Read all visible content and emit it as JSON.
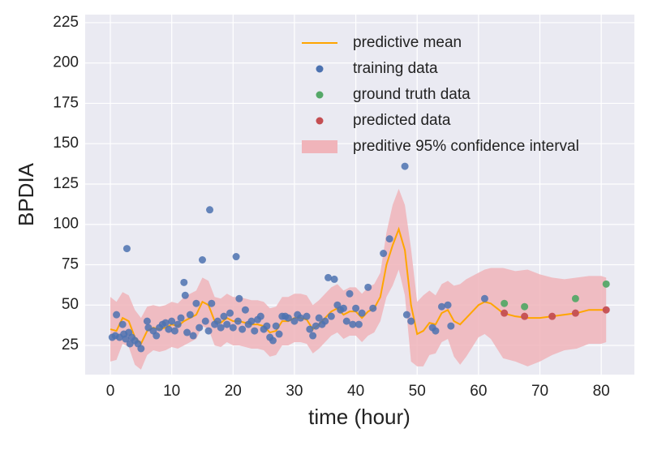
{
  "chart_data": {
    "type": "gp-forecast",
    "xlabel": "time (hour)",
    "ylabel": "BPDIA",
    "xlim": [
      -4.1,
      85.4
    ],
    "ylim": [
      6.9,
      230
    ],
    "xticks": [
      0,
      10,
      20,
      30,
      40,
      50,
      60,
      70,
      80
    ],
    "yticks": [
      25,
      50,
      75,
      100,
      125,
      150,
      175,
      200,
      225
    ],
    "grid": true,
    "legend": "upper center",
    "series": [
      {
        "name": "predictive mean",
        "kind": "line",
        "color": "#ffa500",
        "x": [
          0,
          1,
          2,
          3,
          4,
          5,
          6,
          7,
          8,
          9,
          10,
          11,
          12,
          13,
          14,
          15,
          16,
          17,
          18,
          19,
          20,
          21,
          22,
          23,
          24,
          25,
          26,
          27,
          28,
          29,
          30,
          31,
          32,
          33,
          34,
          35,
          36,
          37,
          38,
          39,
          40,
          41,
          42,
          43,
          44,
          45,
          46,
          47,
          48,
          49,
          50,
          51,
          52,
          53,
          54,
          55,
          56,
          57,
          58,
          59,
          60,
          61,
          62,
          63,
          64,
          66,
          68,
          70,
          72,
          74,
          76,
          78,
          80,
          80.8
        ],
        "values": [
          35,
          34,
          42,
          40,
          30,
          26,
          34,
          36,
          35,
          36,
          38,
          37,
          40,
          42,
          44,
          52,
          50,
          40,
          39,
          42,
          40,
          40,
          39,
          38,
          38,
          37,
          33,
          34,
          40,
          40,
          42,
          42,
          41,
          35,
          38,
          42,
          46,
          48,
          44,
          46,
          46,
          42,
          46,
          48,
          55,
          75,
          87,
          97,
          84,
          50,
          32,
          34,
          39,
          38,
          45,
          47,
          40,
          38,
          42,
          46,
          50,
          52,
          51,
          48,
          45,
          43,
          42,
          42,
          43,
          44,
          45,
          47,
          47,
          47
        ]
      },
      {
        "name": "training data",
        "kind": "scatter",
        "color": "#4c72b0",
        "x": [
          0.3,
          0.8,
          1,
          1.5,
          2,
          2.2,
          2.5,
          2.7,
          3,
          3.2,
          3.5,
          4,
          4.5,
          5,
          6,
          6.2,
          7,
          7.5,
          8,
          8.5,
          9,
          9.5,
          10,
          10.5,
          11,
          11.5,
          12,
          12.2,
          12.5,
          13,
          13.5,
          14,
          14.5,
          15,
          15.5,
          16,
          16.2,
          16.5,
          17,
          17.5,
          18,
          18.5,
          19,
          19.5,
          20,
          20.5,
          20.8,
          21,
          21.5,
          22,
          22.5,
          23,
          23.5,
          24,
          24.5,
          25,
          25.5,
          26,
          26.5,
          27,
          27.5,
          28,
          28.5,
          29,
          30,
          30.5,
          31,
          32,
          32.5,
          33,
          33.5,
          34,
          34.5,
          35,
          35.5,
          36,
          36.5,
          37,
          37.5,
          38,
          38.5,
          39,
          39.5,
          40,
          40.5,
          41,
          42,
          42.8,
          44.5,
          45.5,
          48,
          48.3,
          49,
          52.5,
          53,
          54,
          55,
          55.5,
          61
        ],
        "values": [
          30,
          31,
          44,
          30,
          38,
          32,
          29,
          85,
          33,
          26,
          30,
          28,
          26,
          23,
          40,
          36,
          34,
          31,
          36,
          38,
          39,
          35,
          40,
          34,
          38,
          42,
          64,
          56,
          33,
          44,
          31,
          51,
          36,
          78,
          40,
          34,
          109,
          51,
          38,
          40,
          36,
          43,
          38,
          45,
          36,
          80,
          40,
          54,
          35,
          47,
          38,
          40,
          34,
          41,
          43,
          35,
          37,
          30,
          28,
          37,
          32,
          43,
          43,
          42,
          40,
          44,
          42,
          43,
          35,
          31,
          37,
          42,
          38,
          40,
          67,
          43,
          66,
          50,
          47,
          48,
          40,
          57,
          38,
          48,
          38,
          45,
          61,
          48,
          82,
          91,
          136,
          44,
          40,
          36,
          34,
          49,
          50,
          37,
          54
        ]
      },
      {
        "name": "ground truth data",
        "kind": "scatter",
        "color": "#55a868",
        "x": [
          64.2,
          67.5,
          75.8,
          80.8
        ],
        "values": [
          51,
          49,
          54,
          63
        ]
      },
      {
        "name": "predicted data",
        "kind": "scatter",
        "color": "#c44e52",
        "x": [
          64.2,
          67.5,
          72,
          75.8,
          80.8
        ],
        "values": [
          45,
          43,
          43,
          45,
          47
        ]
      },
      {
        "name": "preditive 95% confidence interval",
        "kind": "band",
        "color": "#f0b4ba",
        "x": [
          0,
          1,
          2,
          3,
          4,
          5,
          6,
          7,
          8,
          9,
          10,
          11,
          12,
          13,
          14,
          15,
          16,
          17,
          18,
          19,
          20,
          21,
          22,
          23,
          24,
          25,
          26,
          27,
          28,
          29,
          30,
          31,
          32,
          33,
          34,
          35,
          36,
          37,
          38,
          39,
          40,
          41,
          42,
          43,
          44,
          45,
          46,
          47,
          48,
          49,
          50,
          51,
          52,
          53,
          54,
          55,
          56,
          57,
          58,
          59,
          60,
          61,
          62,
          63,
          64,
          66,
          68,
          70,
          72,
          74,
          76,
          78,
          80,
          80.8
        ],
        "lower": [
          15,
          16,
          26,
          24,
          13,
          10,
          19,
          22,
          21,
          22,
          24,
          23,
          25,
          27,
          29,
          37,
          35,
          25,
          24,
          27,
          25,
          25,
          24,
          23,
          23,
          22,
          18,
          19,
          25,
          25,
          27,
          27,
          26,
          20,
          23,
          27,
          31,
          33,
          29,
          31,
          31,
          27,
          31,
          33,
          40,
          55,
          62,
          72,
          56,
          15,
          12,
          12,
          19,
          20,
          27,
          29,
          18,
          13,
          18,
          24,
          30,
          32,
          29,
          23,
          17,
          15,
          12,
          15,
          19,
          22,
          23,
          26,
          26,
          27
        ],
        "upper": [
          55,
          52,
          58,
          56,
          47,
          42,
          49,
          50,
          49,
          50,
          52,
          51,
          55,
          57,
          59,
          67,
          65,
          55,
          54,
          57,
          55,
          55,
          54,
          53,
          53,
          52,
          48,
          49,
          55,
          55,
          57,
          57,
          56,
          50,
          53,
          57,
          61,
          63,
          59,
          61,
          61,
          57,
          61,
          63,
          70,
          95,
          112,
          122,
          112,
          85,
          52,
          56,
          59,
          56,
          63,
          65,
          62,
          63,
          66,
          68,
          70,
          72,
          73,
          73,
          73,
          71,
          72,
          69,
          67,
          66,
          67,
          68,
          68,
          67
        ]
      }
    ]
  }
}
